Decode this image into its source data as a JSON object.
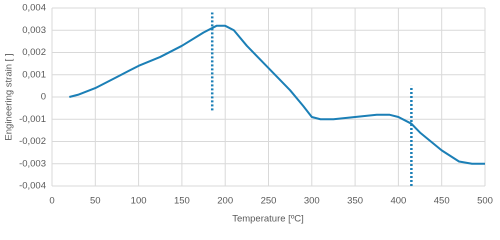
{
  "chart_data": {
    "type": "line",
    "x_label": "Temperature [ºC]",
    "y_label": "Engineering strain [ ]",
    "series": [
      {
        "color": "#1b7fb6",
        "x": [
          20,
          30,
          50,
          75,
          100,
          125,
          150,
          175,
          190,
          200,
          210,
          225,
          250,
          275,
          290,
          300,
          310,
          325,
          350,
          375,
          390,
          400,
          415,
          425,
          450,
          470,
          485,
          500
        ],
        "values": [
          0.0,
          0.0001,
          0.0004,
          0.0009,
          0.0014,
          0.0018,
          0.0023,
          0.0029,
          0.0032,
          0.0032,
          0.003,
          0.0023,
          0.0013,
          0.0003,
          -0.0004,
          -0.0009,
          -0.001,
          -0.001,
          -0.0009,
          -0.0008,
          -0.0008,
          -0.0009,
          -0.0012,
          -0.0016,
          -0.0024,
          -0.0029,
          -0.003,
          -0.003
        ]
      }
    ],
    "vlines": [
      {
        "x": 185,
        "y": [
          -0.0006,
          0.0038
        ],
        "color": "#1b7fb6"
      },
      {
        "x": 415,
        "y": [
          -0.004,
          0.0005
        ],
        "color": "#1b7fb6"
      }
    ],
    "xlim": [
      0,
      500
    ],
    "xticks": [
      0,
      50,
      100,
      150,
      200,
      250,
      300,
      350,
      400,
      450,
      500
    ],
    "ylim": [
      -0.004,
      0.004
    ],
    "yticks": [
      {
        "value": -0.004,
        "label": "-0,004"
      },
      {
        "value": -0.003,
        "label": "-0,003"
      },
      {
        "value": -0.002,
        "label": "-0,002"
      },
      {
        "value": -0.001,
        "label": "-0,001"
      },
      0,
      {
        "value": 0.001,
        "label": "0,001"
      },
      {
        "value": 0.002,
        "label": "0,002"
      },
      {
        "value": 0.003,
        "label": "0,003"
      },
      {
        "value": 0.004,
        "label": "0,004"
      }
    ],
    "grid": true
  }
}
